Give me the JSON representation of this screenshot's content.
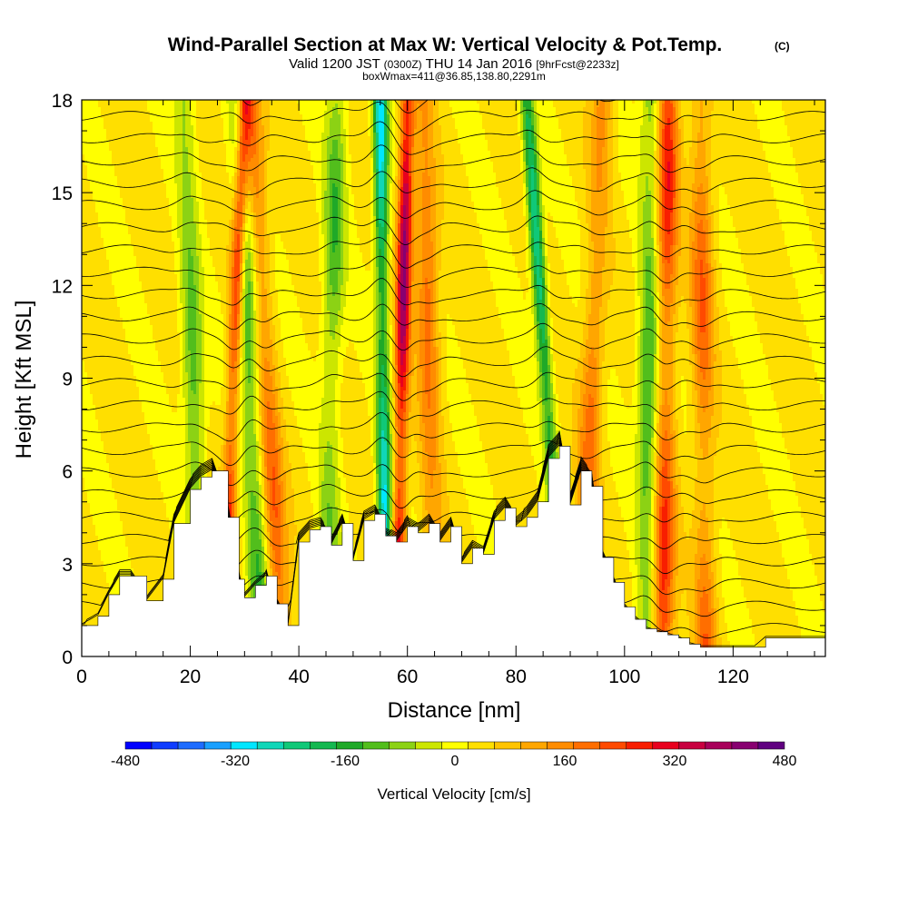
{
  "title": "Wind-Parallel Section at Max W: Vertical Velocity & Pot.Temp.",
  "copyright": "(C)",
  "subtitle_pre": "Valid 1200 JST ",
  "subtitle_utc": "(0300Z)",
  "subtitle_date": " THU 14 Jan 2016 ",
  "subtitle_fcst": "[9hrFcst@2233z]",
  "subtitle2": "boxWmax=411@36.85,138.80,2291m",
  "chart_data": {
    "type": "contour-section",
    "xlabel": "Distance [nm]",
    "ylabel": "Height [Kft MSL]",
    "xlim": [
      0,
      137
    ],
    "ylim": [
      0,
      18
    ],
    "x_ticks": [
      "0",
      "20",
      "40",
      "60",
      "80",
      "100",
      "120"
    ],
    "x_tick_values": [
      0,
      20,
      40,
      60,
      80,
      100,
      120
    ],
    "y_ticks": [
      "0",
      "3",
      "6",
      "9",
      "12",
      "15",
      "18"
    ],
    "y_tick_values": [
      0,
      3,
      6,
      9,
      12,
      15,
      18
    ],
    "colorbar": {
      "label": "Vertical Velocity [cm/s]",
      "tick_labels": [
        "-480",
        "-320",
        "-160",
        "0",
        "160",
        "320",
        "480"
      ],
      "tick_values": [
        -480,
        -320,
        -160,
        0,
        160,
        320,
        480
      ],
      "levels": [
        -480,
        -440,
        -400,
        -360,
        -320,
        -280,
        -240,
        -200,
        -160,
        -120,
        -80,
        -40,
        0,
        40,
        80,
        120,
        160,
        200,
        240,
        280,
        320,
        360,
        400,
        440,
        480
      ],
      "colors": [
        "#0000ff",
        "#0f3cff",
        "#1e6cff",
        "#1aa0ff",
        "#00e6ff",
        "#10d6b8",
        "#10c878",
        "#14b850",
        "#1fa928",
        "#52be1c",
        "#8cd214",
        "#cce600",
        "#ffff00",
        "#ffdf00",
        "#ffc400",
        "#ffa600",
        "#ff8c00",
        "#ff6e00",
        "#ff4a00",
        "#f81e00",
        "#e8001e",
        "#c80040",
        "#a8005a",
        "#880070",
        "#600080"
      ]
    },
    "terrain_profile": {
      "x": [
        0,
        3,
        5,
        7,
        9,
        12,
        15,
        17,
        20,
        22,
        24,
        27,
        29,
        30,
        32,
        34,
        36,
        38,
        40,
        42,
        44,
        46,
        48,
        50,
        52,
        54,
        56,
        58,
        60,
        62,
        64,
        66,
        68,
        70,
        72,
        74,
        76,
        78,
        80,
        82,
        84,
        86,
        88,
        90,
        92,
        94,
        96,
        98,
        100,
        102,
        104,
        106,
        108,
        110,
        112,
        114,
        116,
        118,
        120,
        122,
        124,
        126,
        128,
        130,
        132,
        135,
        137
      ],
      "y": [
        1.0,
        1.3,
        2.0,
        2.6,
        2.6,
        1.8,
        2.5,
        4.3,
        5.4,
        5.8,
        6.0,
        4.5,
        2.5,
        1.9,
        2.3,
        2.6,
        1.7,
        1.0,
        3.7,
        4.1,
        4.2,
        3.6,
        4.3,
        3.1,
        4.4,
        4.6,
        3.9,
        3.7,
        4.2,
        4.0,
        4.3,
        3.7,
        4.2,
        3.0,
        3.5,
        3.3,
        4.4,
        4.8,
        4.2,
        4.5,
        5.0,
        6.4,
        6.8,
        4.9,
        6.0,
        5.5,
        3.2,
        2.4,
        1.6,
        1.2,
        0.9,
        0.8,
        0.7,
        0.6,
        0.4,
        0.3,
        0.3,
        0.3,
        0.3,
        0.3,
        0.3,
        0.6,
        0.6,
        0.6,
        0.6,
        0.6,
        0.6
      ]
    },
    "updraft_bands": [
      {
        "x_bottom": 26,
        "x_top": 30,
        "peak_cm_s": 330
      },
      {
        "x_bottom": 37,
        "x_top": 31,
        "peak_cm_s": 200
      },
      {
        "x_bottom": 58,
        "x_top": 60,
        "peak_cm_s": 411
      },
      {
        "x_bottom": 65,
        "x_top": 63,
        "peak_cm_s": 180
      },
      {
        "x_bottom": 92,
        "x_top": 96,
        "peak_cm_s": 160
      },
      {
        "x_bottom": 107,
        "x_top": 108,
        "peak_cm_s": 260
      },
      {
        "x_bottom": 115,
        "x_top": 114,
        "peak_cm_s": 180
      }
    ],
    "downdraft_bands": [
      {
        "x_bottom": 22,
        "x_top": 19,
        "peak_cm_s": -160
      },
      {
        "x_bottom": 33,
        "x_top": 29,
        "peak_cm_s": -220
      },
      {
        "x_bottom": 45,
        "x_top": 47,
        "peak_cm_s": -160
      },
      {
        "x_bottom": 56,
        "x_top": 55,
        "peak_cm_s": -360
      },
      {
        "x_bottom": 89,
        "x_top": 82,
        "peak_cm_s": -310
      },
      {
        "x_bottom": 104,
        "x_top": 105,
        "peak_cm_s": -200
      }
    ]
  }
}
